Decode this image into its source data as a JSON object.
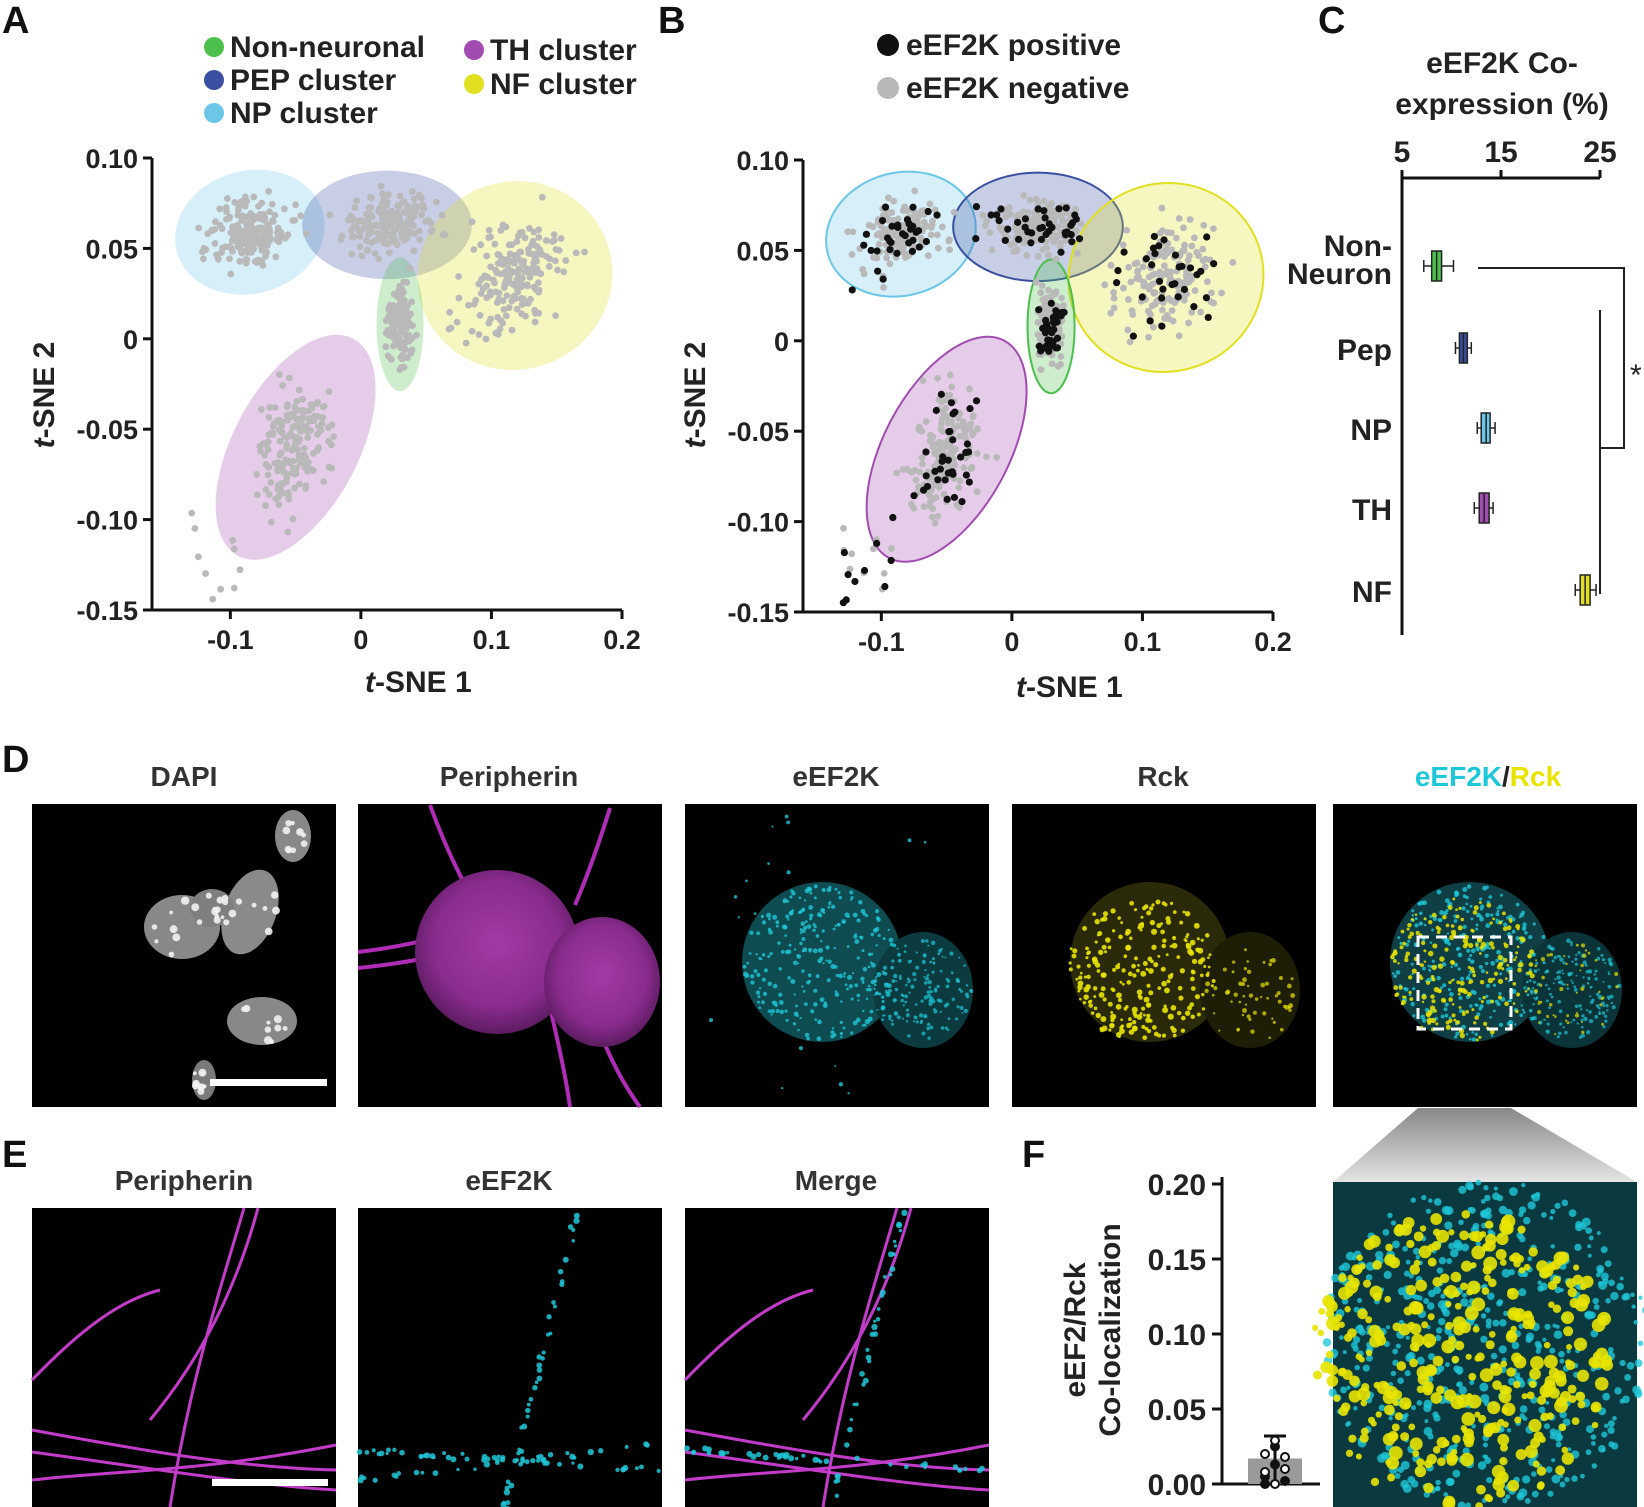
{
  "panels": {
    "A": "A",
    "B": "B",
    "C": "C",
    "D": "D",
    "E": "E",
    "F": "F"
  },
  "colors": {
    "non_neuronal": "#4cbf4c",
    "pep": "#3a4fa0",
    "np": "#6cc6e8",
    "th": "#a24bb0",
    "nf": "#e0e020",
    "points_gray": "#b9b9b9",
    "points_black": "#111111",
    "cyan": "#1ec8d8",
    "yellow": "#e8e400",
    "magenta": "#c23cc9"
  },
  "legend_a": [
    {
      "label": "Non-neuronal",
      "color": "#4cbf4c"
    },
    {
      "label": "PEP cluster",
      "color": "#3a4fa0"
    },
    {
      "label": "NP cluster",
      "color": "#6cc6e8"
    },
    {
      "label": "TH cluster",
      "color": "#a24bb0"
    },
    {
      "label": "NF cluster",
      "color": "#e0e020"
    }
  ],
  "legend_b": [
    {
      "label": "eEF2K positive",
      "color": "#111111"
    },
    {
      "label": "eEF2K negative",
      "color": "#b9b9b9"
    }
  ],
  "chart_data": [
    {
      "panel": "A",
      "type": "scatter",
      "xlabel_italic": "t",
      "xlabel_rest": "-SNE 1",
      "ylabel_italic": "t",
      "ylabel_rest": "-SNE 2",
      "xlim": [
        -0.16,
        0.2
      ],
      "ylim": [
        -0.15,
        0.1
      ],
      "xticks": [
        "-0.1",
        "0",
        "0.1",
        "0.2"
      ],
      "yticks": [
        "0.10",
        "0.05",
        "0",
        "-0.05",
        "-0.10",
        "-0.15"
      ],
      "clusters": [
        {
          "name": "NP cluster",
          "cx": -0.085,
          "cy": 0.059,
          "rx": 0.058,
          "ry": 0.034,
          "angle": -15,
          "color": "#6cc6e8"
        },
        {
          "name": "PEP cluster",
          "cx": 0.02,
          "cy": 0.063,
          "rx": 0.065,
          "ry": 0.03,
          "angle": 0,
          "color": "#3a4fa0"
        },
        {
          "name": "NF cluster",
          "cx": 0.118,
          "cy": 0.035,
          "rx": 0.075,
          "ry": 0.052,
          "angle": -20,
          "color": "#e0e020"
        },
        {
          "name": "Non-neuronal",
          "cx": 0.03,
          "cy": 0.008,
          "rx": 0.018,
          "ry": 0.037,
          "angle": 0,
          "color": "#4cbf4c"
        },
        {
          "name": "TH cluster",
          "cx": -0.05,
          "cy": -0.06,
          "rx": 0.048,
          "ry": 0.068,
          "angle": 28,
          "color": "#a24bb0"
        }
      ],
      "series": [
        {
          "name": "cells",
          "color": "#b9b9b9",
          "n": 900
        }
      ]
    },
    {
      "panel": "B",
      "type": "scatter",
      "xlabel_italic": "t",
      "xlabel_rest": "-SNE 1",
      "ylabel_italic": "t",
      "ylabel_rest": "-SNE 2",
      "xlim": [
        -0.16,
        0.2
      ],
      "ylim": [
        -0.15,
        0.1
      ],
      "xticks": [
        "-0.1",
        "0",
        "0.1",
        "0.2"
      ],
      "yticks": [
        "0.10",
        "0.05",
        "0",
        "-0.05",
        "-0.10",
        "-0.15"
      ],
      "series": [
        {
          "name": "eEF2K negative",
          "color": "#b9b9b9",
          "n": 800
        },
        {
          "name": "eEF2K positive",
          "color": "#111111",
          "n": 170
        }
      ]
    },
    {
      "panel": "C",
      "type": "box",
      "title_lines": [
        "eEF2K Co-",
        "expression (%)"
      ],
      "xticks": [
        "5",
        "15",
        "25"
      ],
      "xlim": [
        5,
        25
      ],
      "categories": [
        "Non-Neuron",
        "Pep",
        "NP",
        "TH",
        "NF"
      ],
      "category_lines": [
        [
          "Non-",
          "Neuron"
        ],
        [
          "Pep"
        ],
        [
          "NP"
        ],
        [
          "TH"
        ],
        [
          "NF"
        ]
      ],
      "medians": [
        8.5,
        11.2,
        13.5,
        13.3,
        23.5
      ],
      "q1": [
        8.0,
        10.8,
        13.0,
        12.8,
        23.0
      ],
      "q3": [
        9.0,
        11.6,
        13.9,
        13.8,
        24.0
      ],
      "whisker_low": [
        7.2,
        10.4,
        12.6,
        12.3,
        22.5
      ],
      "whisker_high": [
        10.2,
        12.0,
        14.4,
        14.2,
        24.6
      ],
      "colors": [
        "#4cbf4c",
        "#3a4fa0",
        "#6cc6e8",
        "#a24bb0",
        "#e0e020"
      ],
      "significance": "*"
    },
    {
      "panel": "F",
      "type": "bar",
      "ylabel_lines": [
        "eEF2/Rck",
        "Co-localization"
      ],
      "ylim": [
        0,
        0.2
      ],
      "yticks": [
        "0.20",
        "0.15",
        "0.10",
        "0.05",
        "0.00"
      ],
      "values": [
        0.017
      ],
      "error": 0.015,
      "points": [
        0.02,
        0.013,
        0.01,
        0.005,
        0.0,
        0.002,
        0.008,
        0.025,
        0.018,
        0.0
      ]
    }
  ],
  "micrographs_d": [
    {
      "title": "DAPI",
      "scale_bar": true
    },
    {
      "title": "Peripherin"
    },
    {
      "title": "eEF2K"
    },
    {
      "title": "Rck"
    },
    {
      "title_a": "eEF2K",
      "title_sep": "/",
      "title_b": "Rck"
    }
  ],
  "micrographs_e": [
    {
      "title": "Peripherin",
      "scale_bar": true
    },
    {
      "title": "eEF2K"
    },
    {
      "title": "Merge"
    }
  ]
}
